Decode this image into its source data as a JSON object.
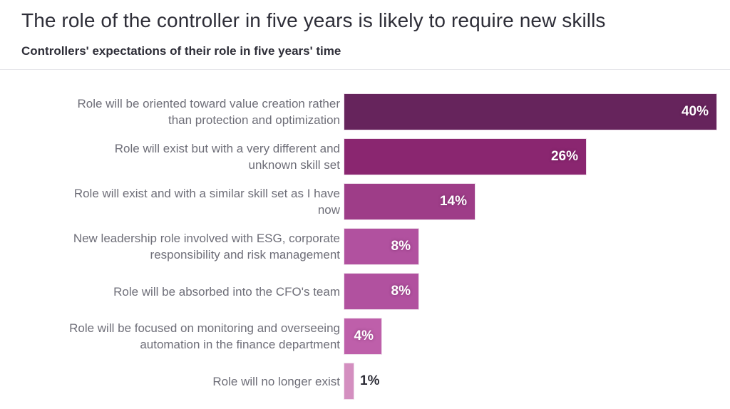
{
  "header": {
    "title": "The role of the controller in five years is likely to require new skills",
    "subtitle": "Controllers' expectations of their role in five years' time"
  },
  "chart_data": {
    "type": "bar",
    "orientation": "horizontal",
    "title": "The role of the controller in five years is likely to require new skills",
    "subtitle": "Controllers' expectations of their role in five years' time",
    "categories": [
      "Role will be oriented toward value creation rather than protection and optimization",
      "Role will exist but with a very different and unknown skill set",
      "Role will exist and with a similar skill set as I have now",
      "New leadership role involved with ESG, corporate responsibility and risk management",
      "Role will be absorbed into the CFO's team",
      "Role will be focused on monitoring and overseeing automation in the finance department",
      "Role will no longer exist"
    ],
    "category_lines": [
      [
        "Role will be oriented toward value creation rather",
        "than protection and optimization"
      ],
      [
        "Role will exist but with a very different and",
        "unknown skill set"
      ],
      [
        "Role will exist and with a similar skill set as I have",
        "now"
      ],
      [
        "New leadership role involved with ESG, corporate",
        "responsibility and risk management"
      ],
      [
        "Role will be absorbed into the CFO's team"
      ],
      [
        "Role will be focused on monitoring and overseeing",
        "automation in the finance department"
      ],
      [
        "Role will no longer exist"
      ]
    ],
    "values": [
      40,
      26,
      14,
      8,
      8,
      4,
      1
    ],
    "value_labels": [
      "40%",
      "26%",
      "14%",
      "8%",
      "8%",
      "4%",
      "1%"
    ],
    "unit": "%",
    "bar_colors": [
      "#66245C",
      "#8A2670",
      "#9E3D88",
      "#B1519F",
      "#B1519F",
      "#BE5FAA",
      "#D48FC0"
    ],
    "xlim": [
      0,
      40
    ],
    "grid": false,
    "legend": false,
    "axis_ticks_visible": false
  },
  "colors": {
    "title_text": "#2E2E38",
    "subtitle_text": "#2E2E38",
    "category_label_text": "#6E6E78",
    "value_label_inside": "#FFFFFF",
    "value_label_outside": "#2E2E38",
    "divider": "#E6E6EA",
    "background": "#FFFFFF"
  }
}
